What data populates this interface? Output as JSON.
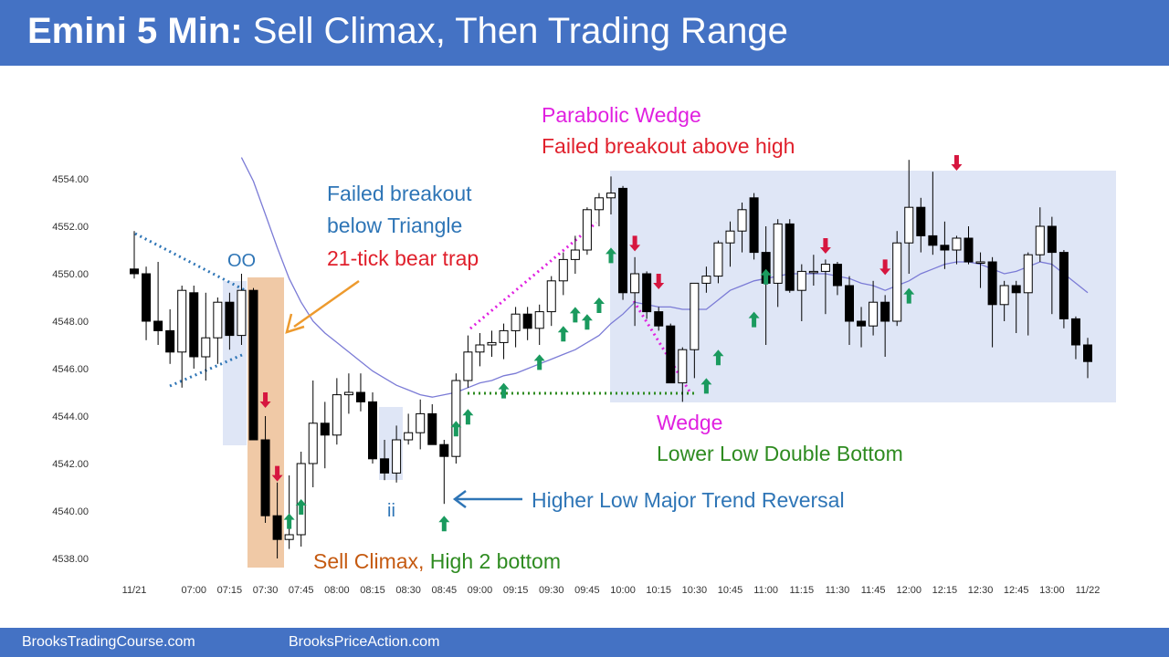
{
  "header": {
    "title_bold": "Emini 5 Min:",
    "title_rest": " Sell Climax, Then Trading Range"
  },
  "footer": {
    "left": "BrooksTradingCourse.com",
    "right": "BrooksPriceAction.com"
  },
  "colors": {
    "header_bg": "#4472c4",
    "bull_candle": "#ffffff",
    "bear_candle": "#000000",
    "moving_average": "#7b7bd6",
    "bull_arrow": "#1a9a5e",
    "bear_arrow": "#d6163f",
    "range_box": "#dfe6f6",
    "climax_box": "#f0c9a6",
    "magenta": "#e020e0",
    "blue_text": "#2e75b6",
    "red_text": "#e0202c",
    "green_text": "#2e8b20",
    "orange_text": "#c55a11"
  },
  "chart_data": {
    "type": "candlestick",
    "instrument": "Emini",
    "timeframe": "5 Min",
    "ylim": [
      4537.5,
      4555.0
    ],
    "y_ticks": [
      "4554.00",
      "4552.00",
      "4550.00",
      "4548.00",
      "4546.00",
      "4544.00",
      "4542.00",
      "4540.00",
      "4538.00"
    ],
    "y_tick_values": [
      4554,
      4552,
      4550,
      4548,
      4546,
      4544,
      4542,
      4540,
      4538
    ],
    "x_ticks": [
      {
        "label": "11/21",
        "i": 0
      },
      {
        "label": "07:00",
        "i": 5
      },
      {
        "label": "07:15",
        "i": 8
      },
      {
        "label": "07:30",
        "i": 11
      },
      {
        "label": "07:45",
        "i": 14
      },
      {
        "label": "08:00",
        "i": 17
      },
      {
        "label": "08:15",
        "i": 20
      },
      {
        "label": "08:30",
        "i": 23
      },
      {
        "label": "08:45",
        "i": 26
      },
      {
        "label": "09:00",
        "i": 29
      },
      {
        "label": "09:15",
        "i": 32
      },
      {
        "label": "09:30",
        "i": 35
      },
      {
        "label": "09:45",
        "i": 38
      },
      {
        "label": "10:00",
        "i": 41
      },
      {
        "label": "10:15",
        "i": 44
      },
      {
        "label": "10:30",
        "i": 47
      },
      {
        "label": "10:45",
        "i": 50
      },
      {
        "label": "11:00",
        "i": 53
      },
      {
        "label": "11:15",
        "i": 56
      },
      {
        "label": "11:30",
        "i": 59
      },
      {
        "label": "11:45",
        "i": 62
      },
      {
        "label": "12:00",
        "i": 65
      },
      {
        "label": "12:15",
        "i": 68
      },
      {
        "label": "12:30",
        "i": 71
      },
      {
        "label": "12:45",
        "i": 74
      },
      {
        "label": "13:00",
        "i": 77
      },
      {
        "label": "11/22",
        "i": 80
      }
    ],
    "candles": [
      {
        "o": 4550.2,
        "h": 4551.8,
        "l": 4549.8,
        "c": 4550.0
      },
      {
        "o": 4550.0,
        "h": 4550.3,
        "l": 4547.2,
        "c": 4548.0
      },
      {
        "o": 4548.0,
        "h": 4550.5,
        "l": 4547.0,
        "c": 4547.6
      },
      {
        "o": 4547.6,
        "h": 4548.5,
        "l": 4546.2,
        "c": 4546.7
      },
      {
        "o": 4546.7,
        "h": 4549.5,
        "l": 4545.2,
        "c": 4549.3
      },
      {
        "o": 4549.2,
        "h": 4549.5,
        "l": 4546.0,
        "c": 4546.5
      },
      {
        "o": 4546.5,
        "h": 4549.2,
        "l": 4545.5,
        "c": 4547.3
      },
      {
        "o": 4547.3,
        "h": 4549.0,
        "l": 4546.2,
        "c": 4548.8
      },
      {
        "o": 4548.8,
        "h": 4549.2,
        "l": 4546.8,
        "c": 4547.4
      },
      {
        "o": 4547.4,
        "h": 4550.0,
        "l": 4547.0,
        "c": 4549.3
      },
      {
        "o": 4549.3,
        "h": 4549.4,
        "l": 4543.0,
        "c": 4543.0
      },
      {
        "o": 4543.0,
        "h": 4544.0,
        "l": 4539.5,
        "c": 4539.8
      },
      {
        "o": 4539.8,
        "h": 4541.2,
        "l": 4538.0,
        "c": 4538.8
      },
      {
        "o": 4538.8,
        "h": 4541.5,
        "l": 4538.4,
        "c": 4539.0
      },
      {
        "o": 4539.0,
        "h": 4542.5,
        "l": 4538.5,
        "c": 4542.0
      },
      {
        "o": 4542.0,
        "h": 4545.5,
        "l": 4541.0,
        "c": 4543.7
      },
      {
        "o": 4543.7,
        "h": 4544.6,
        "l": 4541.8,
        "c": 4543.2
      },
      {
        "o": 4543.2,
        "h": 4545.6,
        "l": 4542.8,
        "c": 4544.9
      },
      {
        "o": 4544.9,
        "h": 4545.8,
        "l": 4544.1,
        "c": 4545.0
      },
      {
        "o": 4545.0,
        "h": 4545.8,
        "l": 4544.2,
        "c": 4544.6
      },
      {
        "o": 4544.6,
        "h": 4545.0,
        "l": 4542.0,
        "c": 4542.2
      },
      {
        "o": 4542.2,
        "h": 4543.0,
        "l": 4541.3,
        "c": 4541.6
      },
      {
        "o": 4541.6,
        "h": 4543.6,
        "l": 4541.2,
        "c": 4543.0
      },
      {
        "o": 4543.0,
        "h": 4544.1,
        "l": 4542.8,
        "c": 4543.3
      },
      {
        "o": 4543.3,
        "h": 4544.7,
        "l": 4542.6,
        "c": 4544.1
      },
      {
        "o": 4544.1,
        "h": 4544.5,
        "l": 4542.8,
        "c": 4542.8
      },
      {
        "o": 4542.8,
        "h": 4543.0,
        "l": 4540.3,
        "c": 4542.3
      },
      {
        "o": 4542.3,
        "h": 4545.8,
        "l": 4542.0,
        "c": 4545.5
      },
      {
        "o": 4545.5,
        "h": 4547.4,
        "l": 4545.2,
        "c": 4546.7
      },
      {
        "o": 4546.7,
        "h": 4547.5,
        "l": 4546.1,
        "c": 4547.0
      },
      {
        "o": 4547.0,
        "h": 4547.6,
        "l": 4546.5,
        "c": 4547.1
      },
      {
        "o": 4547.1,
        "h": 4547.9,
        "l": 4546.4,
        "c": 4547.6
      },
      {
        "o": 4547.6,
        "h": 4548.6,
        "l": 4546.9,
        "c": 4548.3
      },
      {
        "o": 4548.3,
        "h": 4548.6,
        "l": 4547.2,
        "c": 4547.7
      },
      {
        "o": 4547.7,
        "h": 4548.7,
        "l": 4547.0,
        "c": 4548.4
      },
      {
        "o": 4548.4,
        "h": 4549.9,
        "l": 4547.8,
        "c": 4549.7
      },
      {
        "o": 4549.7,
        "h": 4550.9,
        "l": 4549.1,
        "c": 4550.6
      },
      {
        "o": 4550.6,
        "h": 4551.6,
        "l": 4550.0,
        "c": 4551.0
      },
      {
        "o": 4551.0,
        "h": 4552.8,
        "l": 4550.8,
        "c": 4552.7
      },
      {
        "o": 4552.7,
        "h": 4553.4,
        "l": 4552.0,
        "c": 4553.2
      },
      {
        "o": 4553.2,
        "h": 4554.1,
        "l": 4552.5,
        "c": 4553.4
      },
      {
        "o": 4553.6,
        "h": 4553.7,
        "l": 4548.9,
        "c": 4549.2
      },
      {
        "o": 4549.2,
        "h": 4550.7,
        "l": 4547.8,
        "c": 4550.0
      },
      {
        "o": 4550.0,
        "h": 4550.1,
        "l": 4548.1,
        "c": 4548.4
      },
      {
        "o": 4548.4,
        "h": 4548.6,
        "l": 4547.6,
        "c": 4547.8
      },
      {
        "o": 4547.8,
        "h": 4547.9,
        "l": 4545.4,
        "c": 4545.4
      },
      {
        "o": 4545.4,
        "h": 4546.9,
        "l": 4544.6,
        "c": 4546.8
      },
      {
        "o": 4546.8,
        "h": 4549.6,
        "l": 4545.6,
        "c": 4549.6
      },
      {
        "o": 4549.6,
        "h": 4550.3,
        "l": 4549.2,
        "c": 4549.9
      },
      {
        "o": 4549.9,
        "h": 4551.4,
        "l": 4549.6,
        "c": 4551.3
      },
      {
        "o": 4551.3,
        "h": 4552.2,
        "l": 4550.3,
        "c": 4551.8
      },
      {
        "o": 4551.8,
        "h": 4553.0,
        "l": 4550.9,
        "c": 4552.7
      },
      {
        "o": 4553.2,
        "h": 4553.4,
        "l": 4550.6,
        "c": 4550.9
      },
      {
        "o": 4550.9,
        "h": 4552.0,
        "l": 4547.0,
        "c": 4549.6
      },
      {
        "o": 4549.6,
        "h": 4552.3,
        "l": 4548.6,
        "c": 4552.1
      },
      {
        "o": 4552.1,
        "h": 4552.3,
        "l": 4549.2,
        "c": 4549.3
      },
      {
        "o": 4549.3,
        "h": 4550.4,
        "l": 4548.0,
        "c": 4550.1
      },
      {
        "o": 4550.1,
        "h": 4550.8,
        "l": 4549.5,
        "c": 4550.1
      },
      {
        "o": 4550.1,
        "h": 4550.6,
        "l": 4548.3,
        "c": 4550.4
      },
      {
        "o": 4550.4,
        "h": 4550.5,
        "l": 4549.1,
        "c": 4549.5
      },
      {
        "o": 4549.5,
        "h": 4549.9,
        "l": 4547.0,
        "c": 4548.0
      },
      {
        "o": 4548.0,
        "h": 4548.6,
        "l": 4546.9,
        "c": 4547.8
      },
      {
        "o": 4547.8,
        "h": 4549.7,
        "l": 4547.4,
        "c": 4548.8
      },
      {
        "o": 4548.8,
        "h": 4549.1,
        "l": 4546.5,
        "c": 4548.0
      },
      {
        "o": 4548.0,
        "h": 4551.8,
        "l": 4547.8,
        "c": 4551.3
      },
      {
        "o": 4551.3,
        "h": 4554.8,
        "l": 4550.0,
        "c": 4552.8
      },
      {
        "o": 4552.8,
        "h": 4553.2,
        "l": 4550.9,
        "c": 4551.6
      },
      {
        "o": 4551.6,
        "h": 4554.3,
        "l": 4550.8,
        "c": 4551.2
      },
      {
        "o": 4551.2,
        "h": 4552.2,
        "l": 4550.2,
        "c": 4551.0
      },
      {
        "o": 4551.0,
        "h": 4551.6,
        "l": 4550.4,
        "c": 4551.5
      },
      {
        "o": 4551.5,
        "h": 4552.0,
        "l": 4550.4,
        "c": 4550.5
      },
      {
        "o": 4550.5,
        "h": 4550.9,
        "l": 4549.4,
        "c": 4550.5
      },
      {
        "o": 4550.5,
        "h": 4550.7,
        "l": 4546.9,
        "c": 4548.7
      },
      {
        "o": 4548.7,
        "h": 4549.7,
        "l": 4548.0,
        "c": 4549.5
      },
      {
        "o": 4549.5,
        "h": 4549.7,
        "l": 4547.5,
        "c": 4549.2
      },
      {
        "o": 4549.2,
        "h": 4550.9,
        "l": 4547.4,
        "c": 4550.8
      },
      {
        "o": 4550.8,
        "h": 4552.8,
        "l": 4550.5,
        "c": 4552.0
      },
      {
        "o": 4552.0,
        "h": 4552.4,
        "l": 4548.3,
        "c": 4550.9
      },
      {
        "o": 4550.9,
        "h": 4551.0,
        "l": 4547.7,
        "c": 4548.1
      },
      {
        "o": 4548.1,
        "h": 4548.2,
        "l": 4546.4,
        "c": 4547.0
      },
      {
        "o": 4547.0,
        "h": 4547.3,
        "l": 4545.6,
        "c": 4546.3
      }
    ],
    "moving_average": [
      {
        "i": 9,
        "v": 4554.9
      },
      {
        "i": 10,
        "v": 4553.9
      },
      {
        "i": 11,
        "v": 4552.5
      },
      {
        "i": 12,
        "v": 4551.1
      },
      {
        "i": 13,
        "v": 4549.8
      },
      {
        "i": 14,
        "v": 4548.8
      },
      {
        "i": 15,
        "v": 4548.0
      },
      {
        "i": 16,
        "v": 4547.5
      },
      {
        "i": 17,
        "v": 4547.1
      },
      {
        "i": 18,
        "v": 4546.7
      },
      {
        "i": 19,
        "v": 4546.3
      },
      {
        "i": 20,
        "v": 4545.9
      },
      {
        "i": 21,
        "v": 4545.6
      },
      {
        "i": 22,
        "v": 4545.3
      },
      {
        "i": 23,
        "v": 4545.1
      },
      {
        "i": 24,
        "v": 4544.9
      },
      {
        "i": 25,
        "v": 4544.8
      },
      {
        "i": 26,
        "v": 4544.9
      },
      {
        "i": 27,
        "v": 4545.0
      },
      {
        "i": 28,
        "v": 4545.2
      },
      {
        "i": 29,
        "v": 4545.4
      },
      {
        "i": 30,
        "v": 4545.5
      },
      {
        "i": 31,
        "v": 4545.7
      },
      {
        "i": 32,
        "v": 4545.8
      },
      {
        "i": 33,
        "v": 4546.0
      },
      {
        "i": 34,
        "v": 4546.2
      },
      {
        "i": 35,
        "v": 4546.4
      },
      {
        "i": 36,
        "v": 4546.6
      },
      {
        "i": 37,
        "v": 4546.8
      },
      {
        "i": 38,
        "v": 4547.1
      },
      {
        "i": 39,
        "v": 4547.4
      },
      {
        "i": 40,
        "v": 4547.9
      },
      {
        "i": 41,
        "v": 4548.3
      },
      {
        "i": 42,
        "v": 4548.8
      },
      {
        "i": 43,
        "v": 4548.7
      },
      {
        "i": 44,
        "v": 4548.6
      },
      {
        "i": 45,
        "v": 4548.6
      },
      {
        "i": 46,
        "v": 4548.5
      },
      {
        "i": 47,
        "v": 4548.5
      },
      {
        "i": 48,
        "v": 4548.5
      },
      {
        "i": 49,
        "v": 4548.9
      },
      {
        "i": 50,
        "v": 4549.3
      },
      {
        "i": 51,
        "v": 4549.5
      },
      {
        "i": 52,
        "v": 4549.7
      },
      {
        "i": 53,
        "v": 4549.8
      },
      {
        "i": 54,
        "v": 4549.9
      },
      {
        "i": 55,
        "v": 4550.0
      },
      {
        "i": 56,
        "v": 4550.0
      },
      {
        "i": 57,
        "v": 4550.0
      },
      {
        "i": 58,
        "v": 4550.0
      },
      {
        "i": 59,
        "v": 4549.9
      },
      {
        "i": 60,
        "v": 4549.8
      },
      {
        "i": 61,
        "v": 4549.6
      },
      {
        "i": 62,
        "v": 4549.5
      },
      {
        "i": 63,
        "v": 4549.3
      },
      {
        "i": 64,
        "v": 4549.5
      },
      {
        "i": 65,
        "v": 4549.7
      },
      {
        "i": 66,
        "v": 4550.0
      },
      {
        "i": 67,
        "v": 4550.2
      },
      {
        "i": 68,
        "v": 4550.4
      },
      {
        "i": 69,
        "v": 4550.5
      },
      {
        "i": 70,
        "v": 4550.5
      },
      {
        "i": 71,
        "v": 4550.4
      },
      {
        "i": 72,
        "v": 4550.2
      },
      {
        "i": 73,
        "v": 4550.0
      },
      {
        "i": 74,
        "v": 4550.1
      },
      {
        "i": 75,
        "v": 4550.3
      },
      {
        "i": 76,
        "v": 4550.5
      },
      {
        "i": 77,
        "v": 4550.4
      },
      {
        "i": 78,
        "v": 4550.0
      },
      {
        "i": 79,
        "v": 4549.6
      },
      {
        "i": 80,
        "v": 4549.2
      }
    ],
    "bull_arrows": [
      {
        "i": 13,
        "v": 4539.9
      },
      {
        "i": 14,
        "v": 4540.5
      },
      {
        "i": 26,
        "v": 4539.8
      },
      {
        "i": 27,
        "v": 4543.8
      },
      {
        "i": 28,
        "v": 4544.3
      },
      {
        "i": 31,
        "v": 4545.4
      },
      {
        "i": 34,
        "v": 4546.6
      },
      {
        "i": 36,
        "v": 4547.8
      },
      {
        "i": 37,
        "v": 4548.6
      },
      {
        "i": 38,
        "v": 4548.3
      },
      {
        "i": 39,
        "v": 4549.0
      },
      {
        "i": 40,
        "v": 4551.1
      },
      {
        "i": 48,
        "v": 4545.6
      },
      {
        "i": 49,
        "v": 4546.8
      },
      {
        "i": 52,
        "v": 4548.4
      },
      {
        "i": 53,
        "v": 4550.2
      },
      {
        "i": 65,
        "v": 4549.4
      }
    ],
    "bear_arrows": [
      {
        "i": 11,
        "v": 4545.0
      },
      {
        "i": 12,
        "v": 4541.9
      },
      {
        "i": 42,
        "v": 4551.6
      },
      {
        "i": 44,
        "v": 4550.0
      },
      {
        "i": 58,
        "v": 4551.5
      },
      {
        "i": 63,
        "v": 4550.6
      },
      {
        "i": 69,
        "v": 4555.0
      }
    ],
    "annotations": {
      "oo": "OO",
      "failed_breakout_1": "Failed breakout",
      "failed_breakout_2": "below Triangle",
      "bear_trap": "21-tick bear trap",
      "parabolic_wedge": "Parabolic Wedge",
      "failed_breakout_high": "Failed breakout above high",
      "wedge": "Wedge",
      "lower_low_double_bottom": "Lower Low Double Bottom",
      "higher_low": "Higher Low Major Trend Reversal",
      "ii": "ii",
      "sell_climax": "Sell Climax,",
      "high2_bottom": " High 2 bottom"
    }
  }
}
